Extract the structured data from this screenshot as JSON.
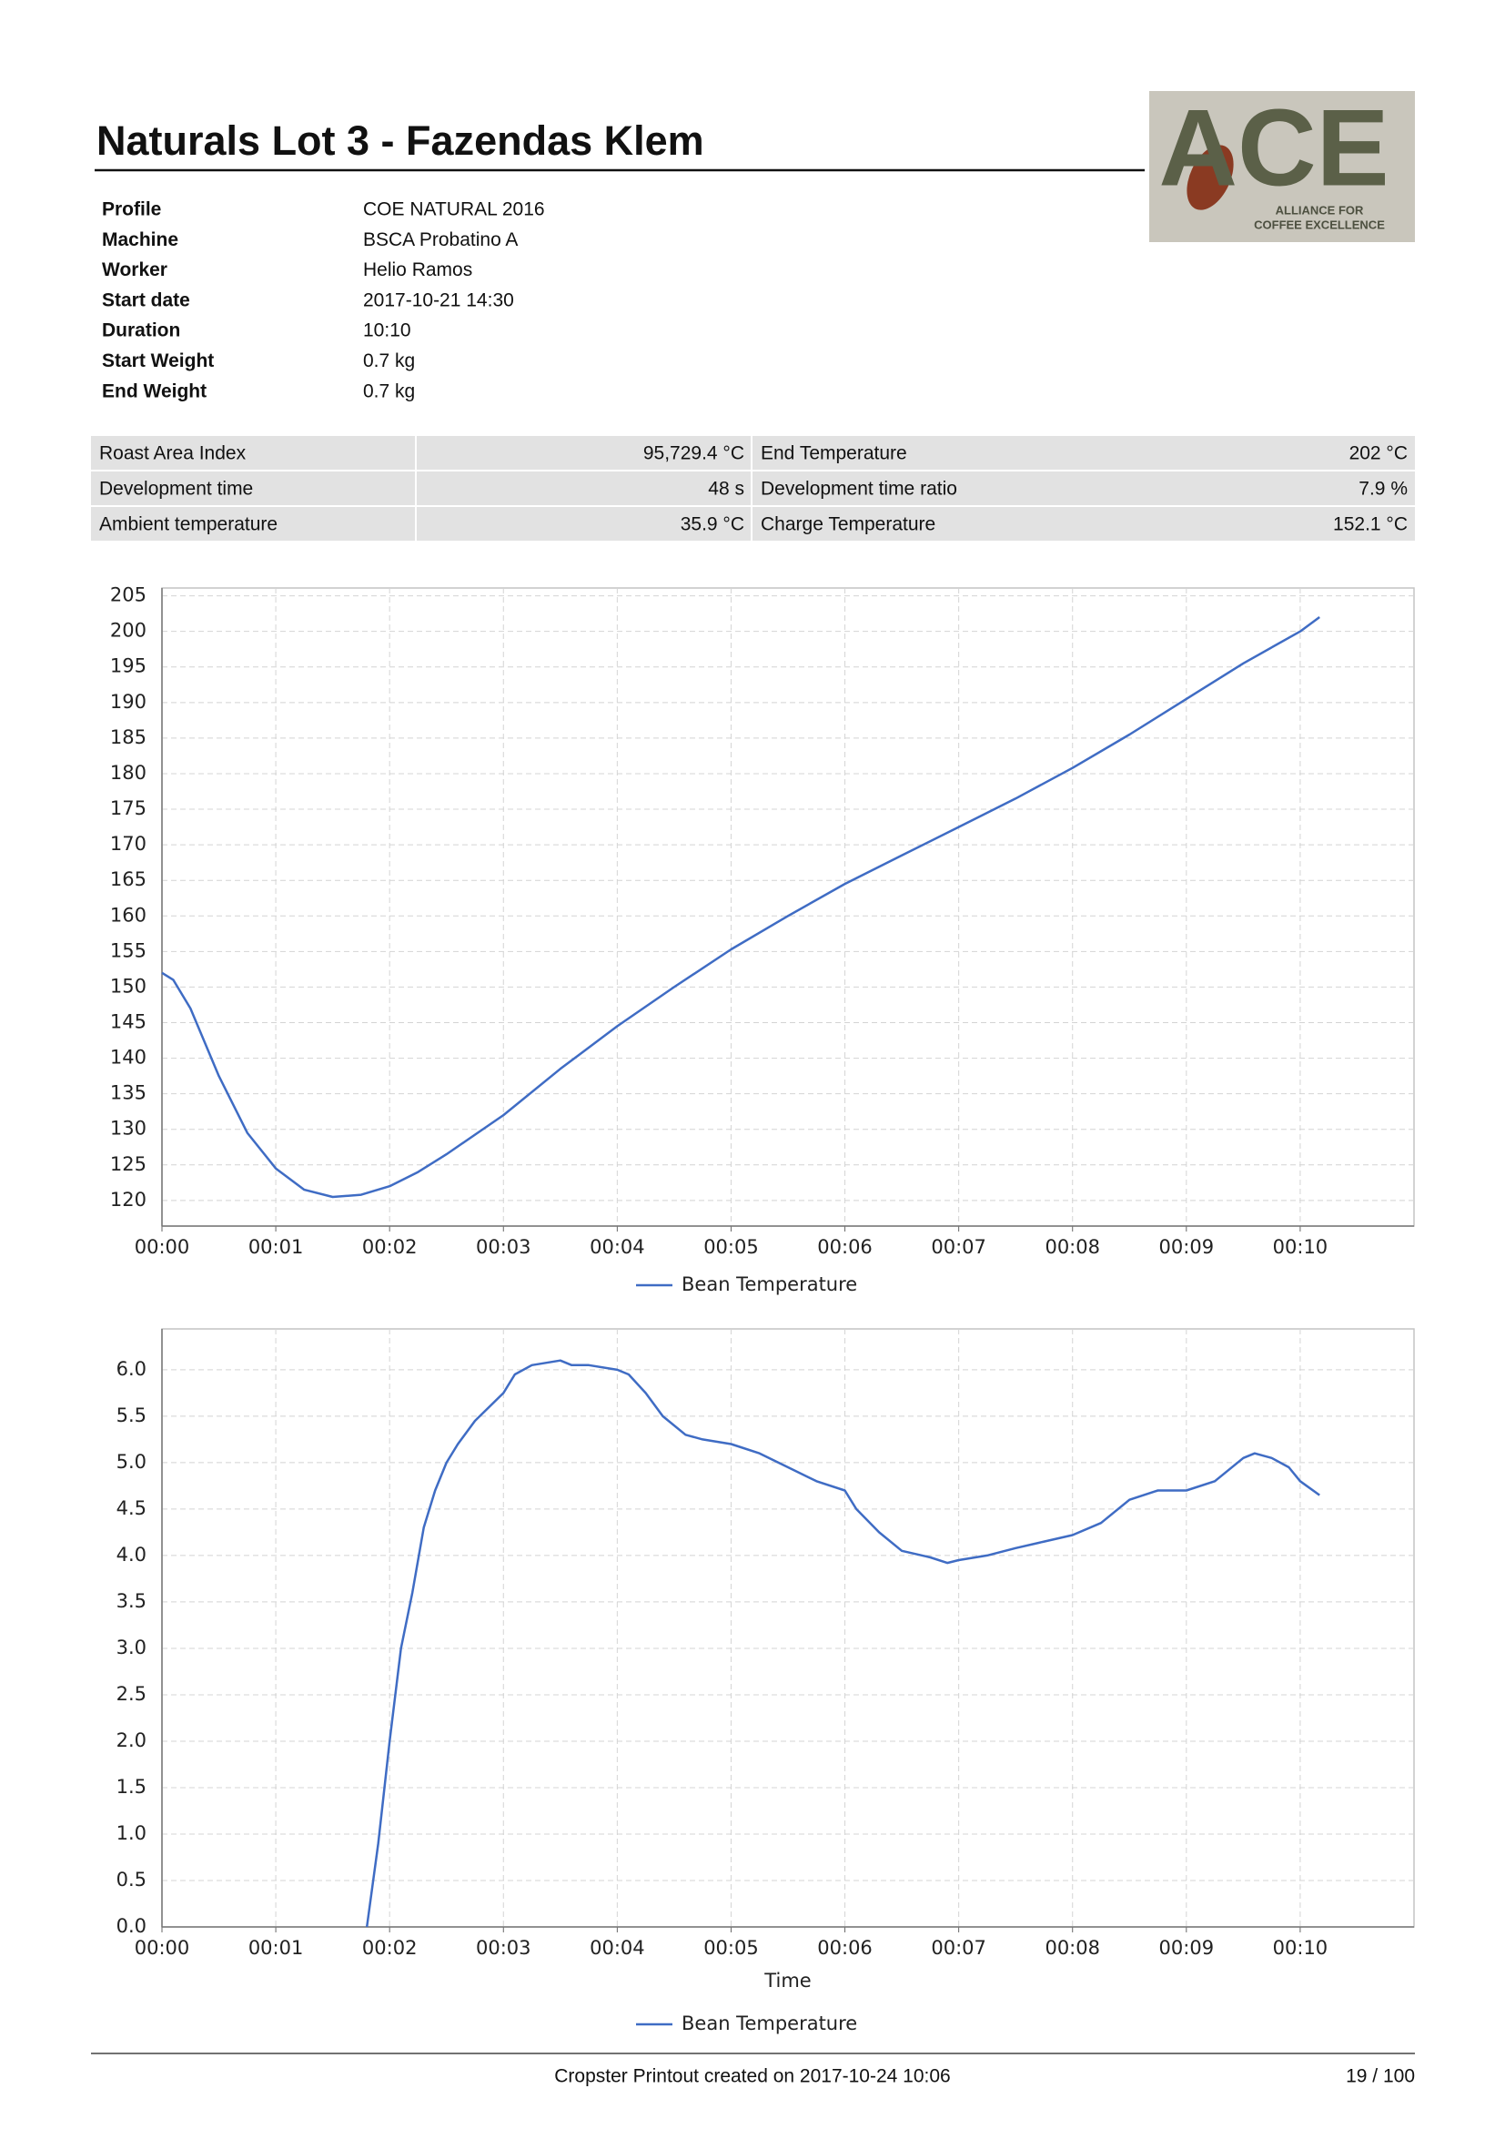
{
  "header": {
    "title": "Naturals Lot 3 - Fazendas Klem"
  },
  "logo": {
    "mark": "ACE",
    "tagline_1": "ALLIANCE FOR",
    "tagline_2": "COFFEE EXCELLENCE"
  },
  "info": [
    {
      "label": "Profile",
      "value": "COE NATURAL 2016"
    },
    {
      "label": "Machine",
      "value": "BSCA Probatino A"
    },
    {
      "label": "Worker",
      "value": "Helio Ramos"
    },
    {
      "label": "Start date",
      "value": "2017-10-21 14:30"
    },
    {
      "label": "Duration",
      "value": "10:10"
    },
    {
      "label": "Start Weight",
      "value": "0.7 kg"
    },
    {
      "label": "End Weight",
      "value": "0.7 kg"
    }
  ],
  "metrics": [
    [
      "Roast Area Index",
      "95,729.4 °C",
      "End Temperature",
      "202 °C"
    ],
    [
      "Development time",
      "48 s",
      "Development time ratio",
      "7.9 %"
    ],
    [
      "Ambient temperature",
      "35.9 °C",
      "Charge Temperature",
      "152.1 °C"
    ]
  ],
  "chart_data": [
    {
      "type": "line",
      "x": [
        0,
        0.1,
        0.25,
        0.5,
        0.75,
        1.0,
        1.25,
        1.5,
        1.75,
        2.0,
        2.25,
        2.5,
        3.0,
        3.5,
        4.0,
        4.5,
        5.0,
        5.5,
        6.0,
        6.5,
        7.0,
        7.5,
        8.0,
        8.5,
        9.0,
        9.5,
        10.0,
        10.17
      ],
      "series": [
        {
          "name": "Bean Temperature",
          "color": "#3f6cc4",
          "values": [
            152,
            151,
            147,
            137.5,
            129.5,
            124.5,
            121.5,
            120.5,
            120.8,
            122,
            124,
            126.5,
            132,
            138.5,
            144.5,
            150,
            155.3,
            160,
            164.5,
            168.5,
            172.5,
            176.5,
            180.8,
            185.5,
            190.5,
            195.5,
            200,
            202
          ]
        }
      ],
      "xlim": [
        0,
        11
      ],
      "ylim": [
        116.4,
        206.1
      ],
      "xticks": [
        {
          "value": 0,
          "label": "00:00"
        },
        {
          "value": 1,
          "label": "00:01"
        },
        {
          "value": 2,
          "label": "00:02"
        },
        {
          "value": 3,
          "label": "00:03"
        },
        {
          "value": 4,
          "label": "00:04"
        },
        {
          "value": 5,
          "label": "00:05"
        },
        {
          "value": 6,
          "label": "00:06"
        },
        {
          "value": 7,
          "label": "00:07"
        },
        {
          "value": 8,
          "label": "00:08"
        },
        {
          "value": 9,
          "label": "00:09"
        },
        {
          "value": 10,
          "label": "00:10"
        }
      ],
      "yticks": [
        120,
        125,
        130,
        135,
        140,
        145,
        150,
        155,
        160,
        165,
        170,
        175,
        180,
        185,
        190,
        195,
        200,
        205
      ],
      "grid": true,
      "legend": "bottom"
    },
    {
      "type": "line",
      "x_label": "Time",
      "x": [
        1.8,
        1.9,
        2.0,
        2.1,
        2.2,
        2.3,
        2.4,
        2.5,
        2.6,
        2.75,
        3.0,
        3.1,
        3.25,
        3.5,
        3.6,
        3.75,
        4.0,
        4.1,
        4.25,
        4.4,
        4.6,
        4.75,
        5.0,
        5.25,
        5.5,
        5.75,
        6.0,
        6.1,
        6.3,
        6.5,
        6.75,
        6.9,
        7.0,
        7.25,
        7.5,
        7.75,
        8.0,
        8.25,
        8.5,
        8.75,
        9.0,
        9.25,
        9.5,
        9.6,
        9.75,
        9.9,
        10.0,
        10.17
      ],
      "series": [
        {
          "name": "Bean Temperature",
          "color": "#3f6cc4",
          "values": [
            0,
            0.9,
            2.0,
            3.0,
            3.6,
            4.3,
            4.7,
            5.0,
            5.2,
            5.45,
            5.75,
            5.95,
            6.05,
            6.1,
            6.05,
            6.05,
            6.0,
            5.95,
            5.75,
            5.5,
            5.3,
            5.25,
            5.2,
            5.1,
            4.95,
            4.8,
            4.7,
            4.5,
            4.25,
            4.05,
            3.98,
            3.92,
            3.95,
            4.0,
            4.08,
            4.15,
            4.22,
            4.35,
            4.6,
            4.7,
            4.7,
            4.8,
            5.05,
            5.1,
            5.05,
            4.95,
            4.8,
            4.65
          ]
        }
      ],
      "xlim": [
        0,
        11
      ],
      "ylim": [
        0,
        6.44
      ],
      "xticks": [
        {
          "value": 0,
          "label": "00:00"
        },
        {
          "value": 1,
          "label": "00:01"
        },
        {
          "value": 2,
          "label": "00:02"
        },
        {
          "value": 3,
          "label": "00:03"
        },
        {
          "value": 4,
          "label": "00:04"
        },
        {
          "value": 5,
          "label": "00:05"
        },
        {
          "value": 6,
          "label": "00:06"
        },
        {
          "value": 7,
          "label": "00:07"
        },
        {
          "value": 8,
          "label": "00:08"
        },
        {
          "value": 9,
          "label": "00:09"
        },
        {
          "value": 10,
          "label": "00:10"
        }
      ],
      "yticks": [
        {
          "value": 0,
          "label": "0.0"
        },
        0.5,
        {
          "value": 1,
          "label": "1.0"
        },
        1.5,
        {
          "value": 2,
          "label": "2.0"
        },
        2.5,
        {
          "value": 3,
          "label": "3.0"
        },
        3.5,
        {
          "value": 4,
          "label": "4.0"
        },
        4.5,
        {
          "value": 5,
          "label": "5.0"
        },
        5.5,
        {
          "value": 6,
          "label": "6.0"
        }
      ],
      "grid": true,
      "legend": "bottom"
    }
  ],
  "footer": {
    "text": "Cropster Printout created on 2017-10-24 10:06",
    "page": "19 / 100"
  }
}
